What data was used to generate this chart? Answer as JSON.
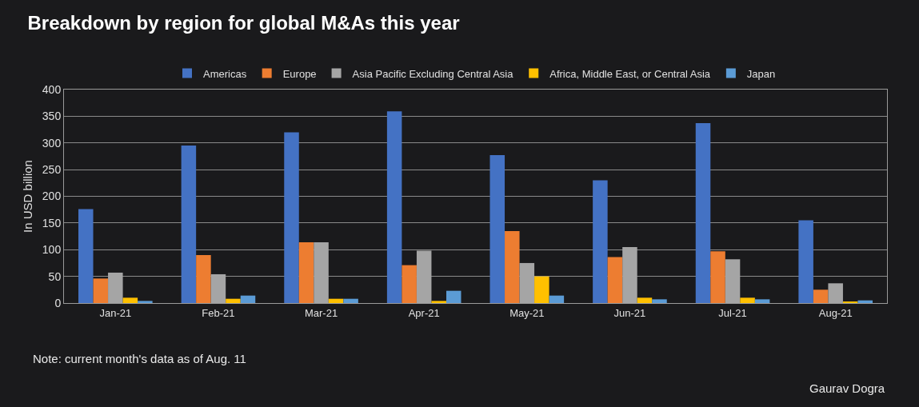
{
  "chart_data": {
    "type": "bar",
    "title": "Breakdown by region for global M&As this year",
    "ylabel": "In USD billion",
    "categories": [
      "Jan-21",
      "Feb-21",
      "Mar-21",
      "Apr-21",
      "May-21",
      "Jun-21",
      "Jul-21",
      "Aug-21"
    ],
    "series": [
      {
        "name": "Americas",
        "color": "#4472c4",
        "values": [
          176,
          295,
          320,
          359,
          277,
          230,
          337,
          155
        ]
      },
      {
        "name": "Europe",
        "color": "#ed7d31",
        "values": [
          46,
          90,
          114,
          71,
          135,
          86,
          97,
          25
        ]
      },
      {
        "name": "Asia Pacific Excluding Central Asia",
        "color": "#a5a5a5",
        "values": [
          57,
          54,
          114,
          98,
          75,
          105,
          82,
          37
        ]
      },
      {
        "name": "Africa, Middle East, or Central Asia",
        "color": "#ffc000",
        "values": [
          10,
          8,
          8,
          4,
          50,
          10,
          10,
          3
        ]
      },
      {
        "name": "Japan",
        "color": "#5b9bd5",
        "values": [
          4,
          14,
          8,
          23,
          14,
          7,
          7,
          5
        ]
      }
    ],
    "ylim": [
      0,
      400
    ],
    "yticks": [
      0,
      50,
      100,
      150,
      200,
      250,
      300,
      350,
      400
    ],
    "grid": "y",
    "legend": "top",
    "annotations": [
      "Note: current month's data as of Aug. 11",
      "Gaurav Dogra"
    ]
  }
}
